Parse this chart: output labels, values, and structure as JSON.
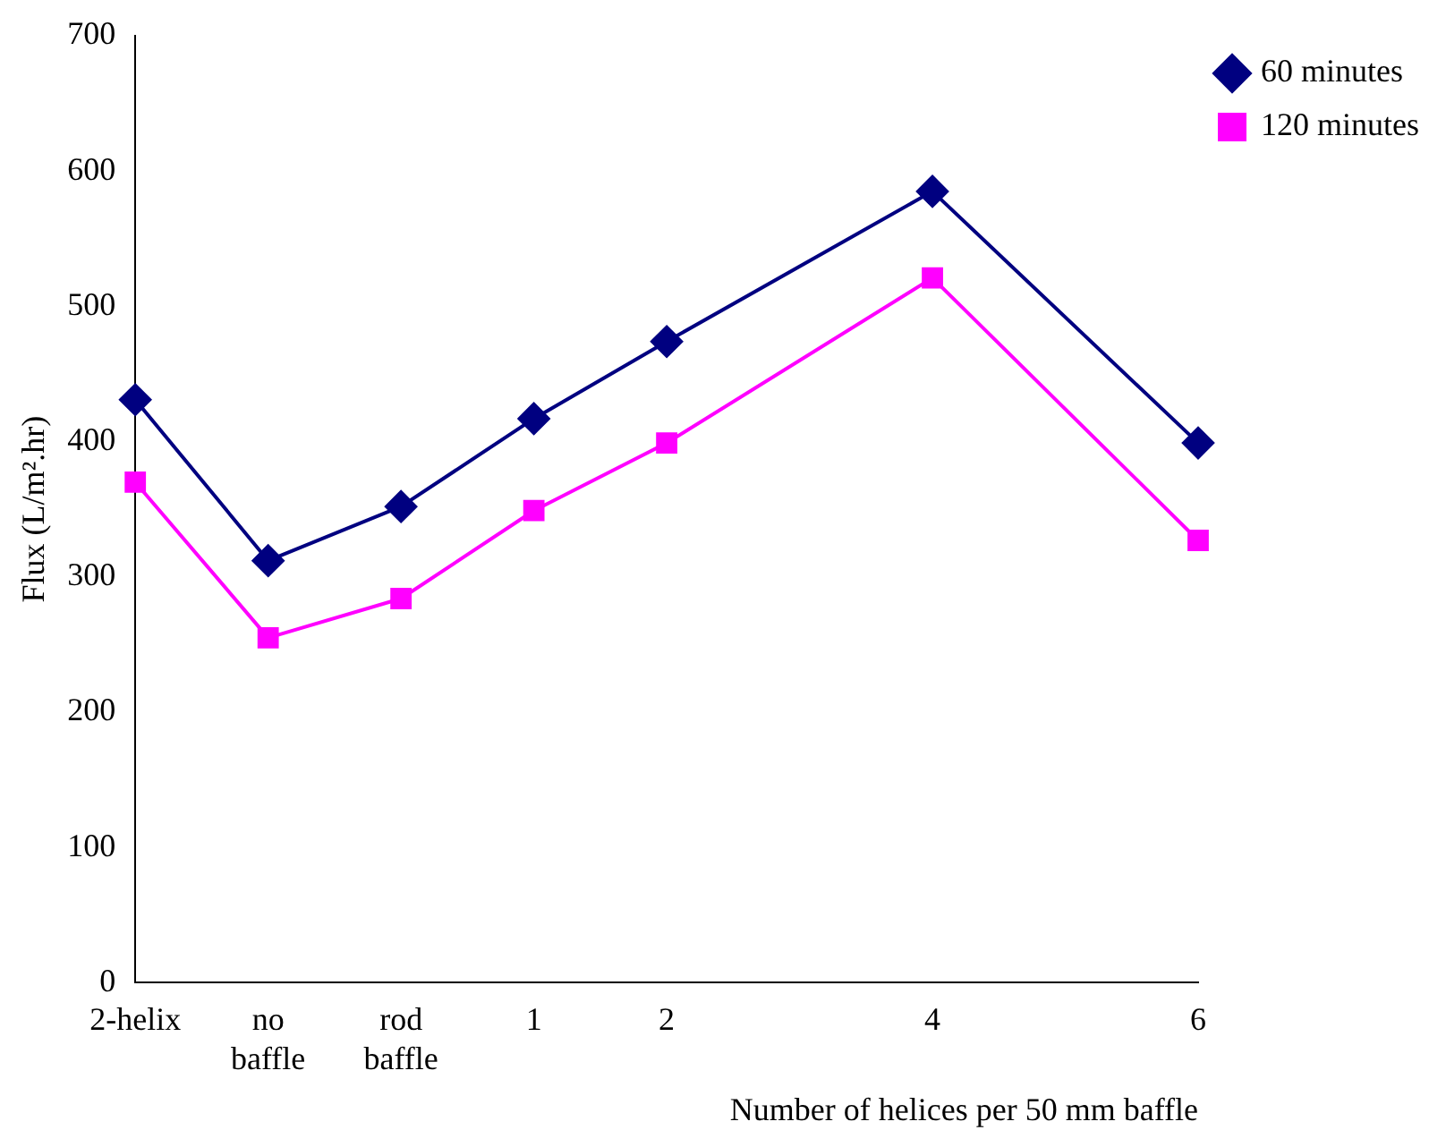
{
  "chart_data": {
    "type": "line",
    "xlabel": "Number of helices per 50 mm baffle",
    "ylabel": "Flux (L/m².hr)",
    "categories": [
      "2-helix",
      "no baffle",
      "rod baffle",
      "1",
      "2",
      null,
      "4",
      null,
      "6"
    ],
    "series": [
      {
        "name": "60 minutes",
        "color": "#000080",
        "marker": "diamond",
        "values": [
          431,
          312,
          352,
          417,
          474,
          null,
          585,
          null,
          399
        ]
      },
      {
        "name": "120 minutes",
        "color": "#ff00ff",
        "marker": "square",
        "values": [
          370,
          255,
          284,
          349,
          399,
          null,
          521,
          null,
          327
        ]
      }
    ],
    "ylim": [
      0,
      700
    ],
    "yticks": [
      0,
      100,
      200,
      300,
      400,
      500,
      600,
      700
    ],
    "grid": false,
    "legend": "top right"
  }
}
